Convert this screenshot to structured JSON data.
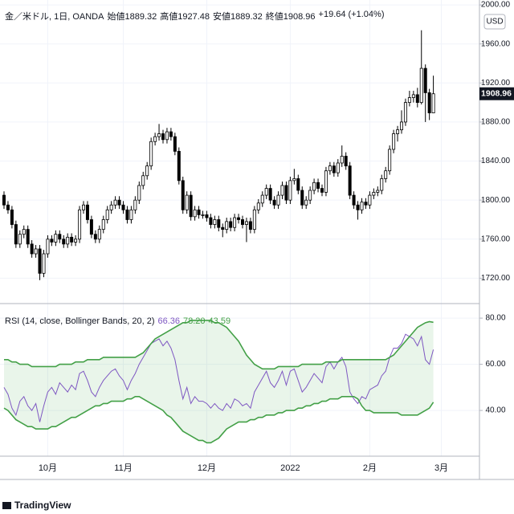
{
  "currency": "USD",
  "brand": "TradingView",
  "chart_data": [
    {
      "type": "candlestick",
      "title": "金／米ドル, 1日, OANDA",
      "ohlc_labels": [
        "始値",
        "高値",
        "安値",
        "終値"
      ],
      "change": "+19.64 (+1.04%)",
      "up_color": "#ffffff",
      "down_color": "#000000",
      "grid": true,
      "ylim": [
        1694,
        2005
      ],
      "yticks": [
        {
          "value": 1720,
          "label": "1720.00"
        },
        {
          "value": 1760,
          "label": "1760.00"
        },
        {
          "value": 1800,
          "label": "1800.00"
        },
        {
          "value": 1840,
          "label": "1840.00"
        },
        {
          "value": 1880,
          "label": "1880.00"
        },
        {
          "value": 1920,
          "label": "1920.00"
        },
        {
          "value": 1960,
          "label": "1960.00"
        },
        {
          "value": 2000,
          "label": "2000.00"
        }
      ],
      "xticks": [
        {
          "value": 11,
          "label": "10月"
        },
        {
          "value": 30,
          "label": "11月"
        },
        {
          "value": 51,
          "label": "12月"
        },
        {
          "value": 72,
          "label": "2022"
        },
        {
          "value": 92,
          "label": "2月"
        },
        {
          "value": 110,
          "label": "3月"
        }
      ],
      "open": [
        1805,
        1795,
        1790,
        1775,
        1755,
        1765,
        1770,
        1755,
        1745,
        1750,
        1725,
        1745,
        1760,
        1757,
        1765,
        1760,
        1755,
        1762,
        1757,
        1760,
        1790,
        1795,
        1780,
        1765,
        1760,
        1770,
        1780,
        1790,
        1795,
        1800,
        1795,
        1790,
        1780,
        1790,
        1800,
        1815,
        1825,
        1835,
        1860,
        1865,
        1868,
        1862,
        1870,
        1865,
        1850,
        1820,
        1790,
        1805,
        1783,
        1790,
        1785,
        1785,
        1782,
        1775,
        1780,
        1772,
        1770,
        1778,
        1772,
        1782,
        1780,
        1775,
        1778,
        1770,
        1790,
        1797,
        1805,
        1812,
        1800,
        1795,
        1805,
        1815,
        1800,
        1820,
        1822,
        1810,
        1795,
        1800,
        1810,
        1818,
        1812,
        1808,
        1830,
        1835,
        1828,
        1838,
        1845,
        1835,
        1805,
        1795,
        1790,
        1798,
        1795,
        1805,
        1808,
        1810,
        1822,
        1830,
        1852,
        1868,
        1872,
        1880,
        1900,
        1905,
        1908,
        1900,
        1935,
        1910,
        1889.32
      ],
      "high": [
        1809,
        1799,
        1794,
        1779,
        1769,
        1774,
        1774,
        1759,
        1754,
        1754,
        1749,
        1764,
        1764,
        1769,
        1769,
        1764,
        1766,
        1766,
        1764,
        1794,
        1799,
        1799,
        1784,
        1769,
        1774,
        1784,
        1794,
        1799,
        1804,
        1804,
        1799,
        1794,
        1794,
        1804,
        1819,
        1829,
        1839,
        1864,
        1869,
        1878,
        1872,
        1874,
        1874,
        1869,
        1854,
        1824,
        1809,
        1809,
        1794,
        1794,
        1789,
        1789,
        1786,
        1784,
        1784,
        1776,
        1782,
        1782,
        1786,
        1786,
        1784,
        1782,
        1782,
        1794,
        1801,
        1809,
        1816,
        1816,
        1804,
        1809,
        1819,
        1819,
        1824,
        1832,
        1826,
        1814,
        1804,
        1814,
        1822,
        1822,
        1816,
        1834,
        1839,
        1839,
        1842,
        1856,
        1849,
        1839,
        1809,
        1799,
        1802,
        1802,
        1809,
        1812,
        1814,
        1826,
        1834,
        1856,
        1872,
        1876,
        1892,
        1904,
        1912,
        1912,
        1915,
        1974,
        1939,
        1914,
        1927.48
      ],
      "low": [
        1791,
        1786,
        1771,
        1751,
        1751,
        1761,
        1751,
        1741,
        1741,
        1718,
        1721,
        1741,
        1753,
        1753,
        1756,
        1751,
        1751,
        1753,
        1753,
        1756,
        1786,
        1776,
        1761,
        1756,
        1756,
        1766,
        1776,
        1786,
        1791,
        1791,
        1786,
        1776,
        1776,
        1786,
        1796,
        1811,
        1821,
        1831,
        1856,
        1861,
        1858,
        1858,
        1861,
        1846,
        1816,
        1786,
        1786,
        1779,
        1779,
        1781,
        1781,
        1778,
        1771,
        1771,
        1768,
        1762,
        1766,
        1768,
        1768,
        1776,
        1771,
        1757,
        1766,
        1766,
        1786,
        1793,
        1801,
        1796,
        1791,
        1791,
        1801,
        1796,
        1796,
        1816,
        1806,
        1791,
        1791,
        1796,
        1806,
        1808,
        1804,
        1804,
        1826,
        1824,
        1824,
        1834,
        1831,
        1801,
        1791,
        1780,
        1786,
        1791,
        1791,
        1801,
        1804,
        1806,
        1818,
        1826,
        1848,
        1860,
        1868,
        1876,
        1896,
        1900,
        1895,
        1898,
        1880,
        1882,
        1889.32
      ],
      "close": [
        1795,
        1790,
        1775,
        1755,
        1765,
        1770,
        1755,
        1745,
        1750,
        1725,
        1745,
        1760,
        1757,
        1765,
        1760,
        1755,
        1762,
        1757,
        1760,
        1790,
        1795,
        1780,
        1765,
        1760,
        1770,
        1780,
        1790,
        1795,
        1800,
        1795,
        1790,
        1780,
        1790,
        1800,
        1815,
        1825,
        1835,
        1860,
        1865,
        1868,
        1862,
        1870,
        1865,
        1850,
        1820,
        1790,
        1805,
        1783,
        1790,
        1785,
        1785,
        1782,
        1775,
        1780,
        1772,
        1770,
        1778,
        1772,
        1782,
        1780,
        1775,
        1778,
        1770,
        1790,
        1797,
        1805,
        1812,
        1800,
        1795,
        1805,
        1815,
        1800,
        1820,
        1822,
        1810,
        1795,
        1800,
        1810,
        1818,
        1812,
        1808,
        1830,
        1835,
        1828,
        1838,
        1845,
        1835,
        1805,
        1795,
        1790,
        1798,
        1795,
        1805,
        1808,
        1810,
        1822,
        1830,
        1852,
        1868,
        1872,
        1880,
        1900,
        1905,
        1908,
        1900,
        1935,
        1910,
        1889.32,
        1908.96
      ]
    },
    {
      "type": "line",
      "title": "RSI (14, close, Bollinger Bands, 20, 2)",
      "last_value_labels": [
        "66.36",
        "78.20",
        "43.59"
      ],
      "ylim": [
        20.2,
        86.3
      ],
      "yticks": [
        {
          "value": 40,
          "label": "40.00"
        },
        {
          "value": 60,
          "label": "60.00"
        },
        {
          "value": 80,
          "label": "80.00"
        }
      ],
      "band_fill": "rgba(76,175,80,0.12)",
      "series": [
        {
          "color": "#7e57c2",
          "values": [
            50,
            47,
            41,
            38,
            44,
            46,
            42,
            40,
            43,
            35,
            42,
            48,
            50,
            47,
            52,
            50,
            48,
            51,
            49,
            56,
            57,
            53,
            48,
            46,
            50,
            53,
            55,
            57,
            58,
            55,
            53,
            49,
            53,
            56,
            60,
            63,
            66,
            69,
            70,
            71,
            68,
            70,
            67,
            62,
            53,
            45,
            50,
            43,
            46,
            44,
            44,
            43,
            41,
            43,
            41,
            40,
            43,
            41,
            45,
            44,
            42,
            43,
            41,
            48,
            51,
            54,
            57,
            52,
            50,
            53,
            57,
            51,
            57,
            58,
            53,
            48,
            50,
            53,
            56,
            54,
            52,
            59,
            61,
            58,
            61,
            63,
            59,
            48,
            45,
            43,
            46,
            45,
            49,
            50,
            51,
            55,
            57,
            63,
            67,
            67,
            69,
            73,
            72,
            71,
            68,
            72,
            62,
            60,
            66.36
          ]
        },
        {
          "color": "#43a047",
          "values": [
            62,
            62,
            61,
            61,
            60,
            60,
            60,
            59,
            59,
            59,
            59,
            59,
            59,
            59,
            60,
            60,
            60,
            60,
            61,
            61,
            61,
            62,
            62,
            62,
            62,
            63,
            63,
            63,
            63,
            63,
            63,
            63,
            63,
            63,
            64,
            65,
            67,
            69,
            71,
            72,
            73,
            74,
            75,
            76,
            77,
            78,
            78,
            79,
            79,
            79,
            79,
            79,
            79,
            78,
            78,
            77,
            76,
            74,
            72,
            70,
            67,
            64,
            62,
            60,
            59,
            58,
            58,
            58,
            58,
            59,
            59,
            59,
            59,
            59,
            59,
            60,
            60,
            60,
            60,
            60,
            60,
            61,
            61,
            61,
            61,
            62,
            62,
            62,
            62,
            62,
            62,
            62,
            62,
            62,
            62,
            62,
            62,
            63,
            64,
            66,
            68,
            70,
            72,
            74,
            76,
            77,
            78,
            78.5,
            78.2
          ]
        },
        {
          "color": "#43a047",
          "values": [
            41,
            40,
            38,
            36,
            35,
            34,
            33,
            33,
            32,
            32,
            32,
            32,
            33,
            33,
            34,
            35,
            36,
            37,
            37,
            38,
            39,
            40,
            41,
            42,
            42,
            43,
            43,
            44,
            44,
            44,
            44,
            45,
            45,
            46,
            46,
            45,
            44,
            43,
            42,
            41,
            40,
            38,
            37,
            35,
            33,
            31,
            30,
            29,
            28,
            27,
            27,
            26,
            26,
            27,
            28,
            30,
            32,
            33,
            34,
            35,
            35,
            35,
            36,
            36,
            37,
            37,
            38,
            38,
            38,
            39,
            39,
            40,
            40,
            40,
            41,
            41,
            42,
            42,
            43,
            43,
            44,
            44,
            45,
            45,
            45,
            46,
            46,
            46,
            46,
            45,
            42,
            40,
            40,
            39,
            39,
            39,
            39,
            39,
            39,
            39,
            38,
            38,
            38,
            38,
            38,
            39,
            40,
            41,
            43.59
          ]
        }
      ]
    }
  ]
}
